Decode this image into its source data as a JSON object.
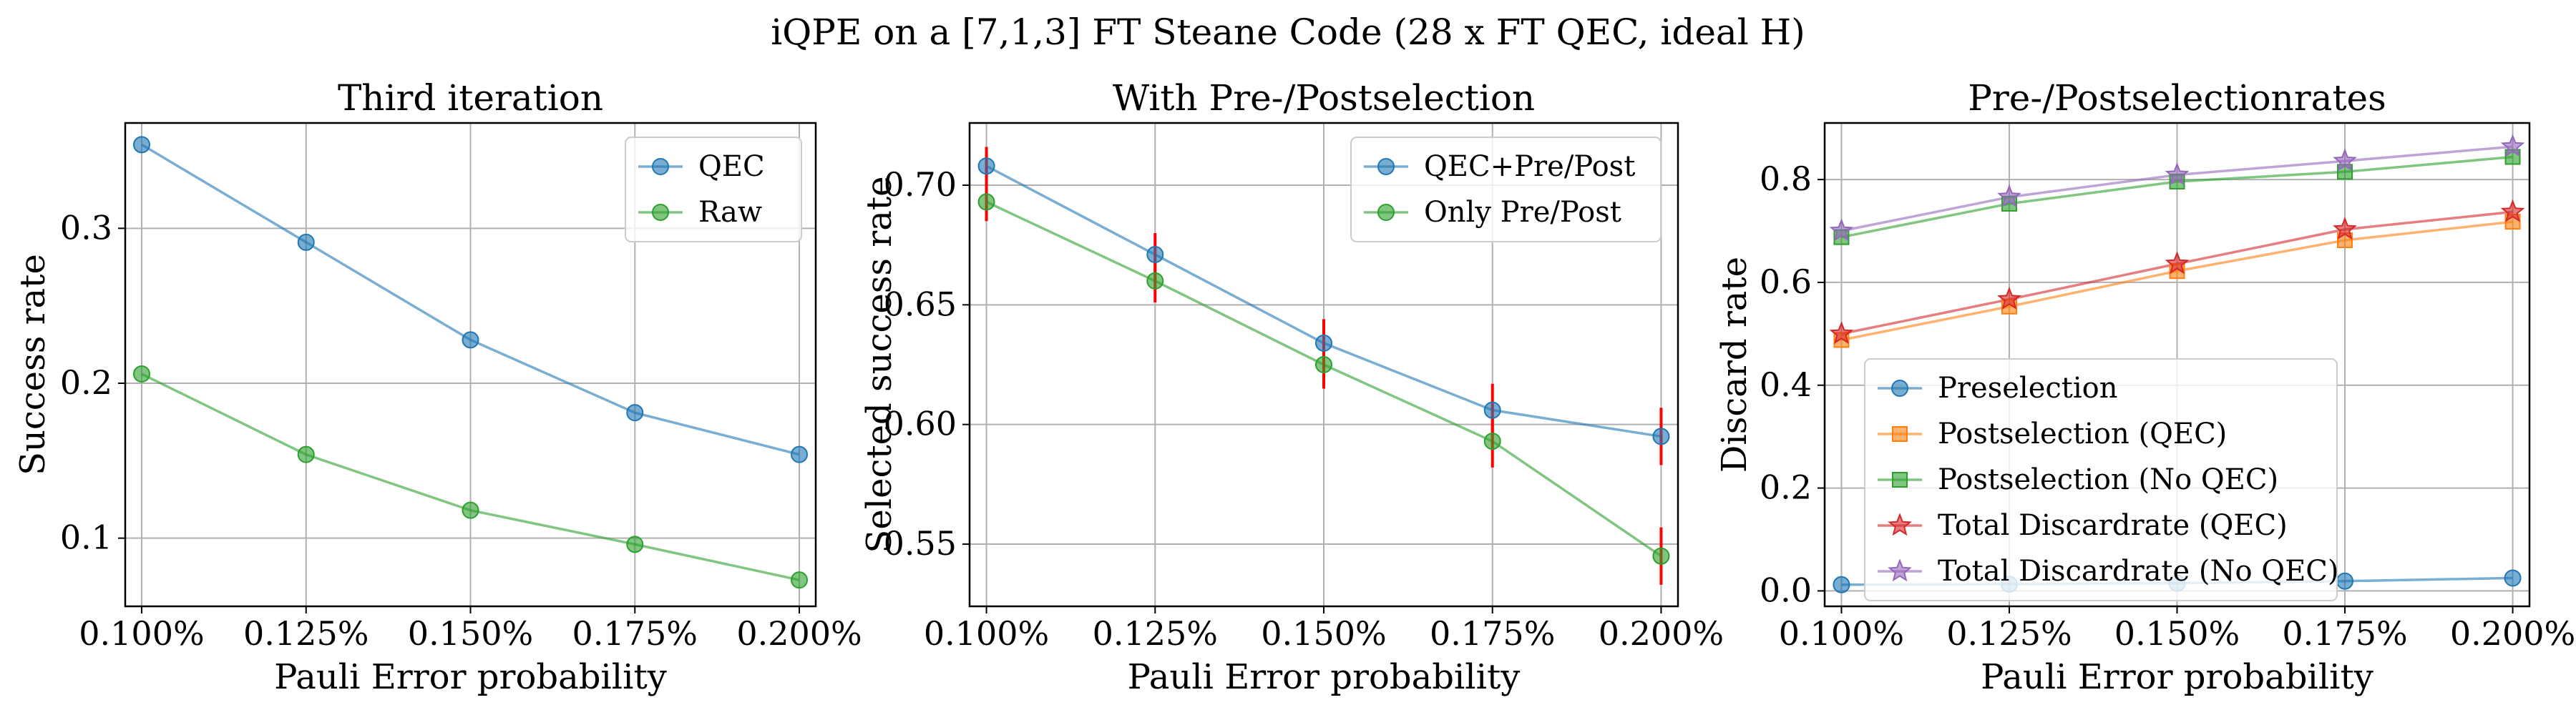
{
  "figure": {
    "suptitle": "iQPE on a [7,1,3] FT Steane Code (28 x FT QEC, ideal H)"
  },
  "chart_data": [
    {
      "type": "line",
      "title": "Third iteration",
      "xlabel": "Pauli Error probability",
      "ylabel": "Success rate",
      "categories": [
        "0.100%",
        "0.125%",
        "0.150%",
        "0.175%",
        "0.200%"
      ],
      "x": [
        0.1,
        0.125,
        0.15,
        0.175,
        0.2
      ],
      "xlim": [
        0.0975,
        0.2025
      ],
      "ylim": [
        0.056,
        0.368
      ],
      "yticks": [
        0.1,
        0.2,
        0.3
      ],
      "ytick_labels": [
        "0.1",
        "0.2",
        "0.3"
      ],
      "grid": true,
      "legend": "top-right",
      "series": [
        {
          "name": "QEC",
          "color": "#1f77b4",
          "marker": "circle",
          "values": [
            0.354,
            0.291,
            0.228,
            0.181,
            0.154
          ]
        },
        {
          "name": "Raw",
          "color": "#2ca02c",
          "marker": "circle",
          "values": [
            0.206,
            0.154,
            0.118,
            0.096,
            0.073
          ]
        }
      ]
    },
    {
      "type": "line",
      "title": "With Pre-/Postselection",
      "xlabel": "Pauli Error probability",
      "ylabel": "Selected success rate",
      "categories": [
        "0.100%",
        "0.125%",
        "0.150%",
        "0.175%",
        "0.200%"
      ],
      "x": [
        0.1,
        0.125,
        0.15,
        0.175,
        0.2
      ],
      "xlim": [
        0.0975,
        0.2025
      ],
      "ylim": [
        0.524,
        0.726
      ],
      "yticks": [
        0.55,
        0.6,
        0.65,
        0.7
      ],
      "ytick_labels": [
        "0.55",
        "0.60",
        "0.65",
        "0.70"
      ],
      "grid": true,
      "legend": "top-right",
      "error_bar_color": "#ff0000",
      "series": [
        {
          "name": "QEC+Pre/Post",
          "color": "#1f77b4",
          "marker": "circle",
          "values": [
            0.708,
            0.671,
            0.634,
            0.606,
            0.595
          ],
          "errors": [
            0.008,
            0.009,
            0.01,
            0.011,
            0.012
          ]
        },
        {
          "name": "Only Pre/Post",
          "color": "#2ca02c",
          "marker": "circle",
          "values": [
            0.693,
            0.66,
            0.625,
            0.593,
            0.545
          ],
          "errors": [
            0.008,
            0.009,
            0.01,
            0.011,
            0.012
          ]
        }
      ]
    },
    {
      "type": "line",
      "title": "Pre-/Postselectionrates",
      "xlabel": "Pauli Error probability",
      "ylabel": "Discard rate",
      "categories": [
        "0.100%",
        "0.125%",
        "0.150%",
        "0.175%",
        "0.200%"
      ],
      "x": [
        0.1,
        0.125,
        0.15,
        0.175,
        0.2
      ],
      "xlim": [
        0.0975,
        0.2025
      ],
      "ylim": [
        -0.03,
        0.91
      ],
      "yticks": [
        0.0,
        0.2,
        0.4,
        0.6,
        0.8
      ],
      "ytick_labels": [
        "0.0",
        "0.2",
        "0.4",
        "0.6",
        "0.8"
      ],
      "grid": true,
      "legend": "lower-left",
      "series": [
        {
          "name": "Preselection",
          "color": "#1f77b4",
          "marker": "circle",
          "values": [
            0.012,
            0.013,
            0.015,
            0.019,
            0.025
          ]
        },
        {
          "name": "Postselection (QEC)",
          "color": "#ff7f0e",
          "marker": "square",
          "values": [
            0.488,
            0.553,
            0.622,
            0.682,
            0.718
          ]
        },
        {
          "name": "Postselection (No QEC)",
          "color": "#2ca02c",
          "marker": "square",
          "values": [
            0.688,
            0.753,
            0.796,
            0.815,
            0.844
          ]
        },
        {
          "name": "Total Discardrate (QEC)",
          "color": "#d62728",
          "marker": "star",
          "values": [
            0.5,
            0.567,
            0.636,
            0.703,
            0.737
          ]
        },
        {
          "name": "Total Discardrate (No QEC)",
          "color": "#9467bd",
          "marker": "star",
          "values": [
            0.7,
            0.766,
            0.809,
            0.836,
            0.864
          ]
        }
      ]
    }
  ]
}
